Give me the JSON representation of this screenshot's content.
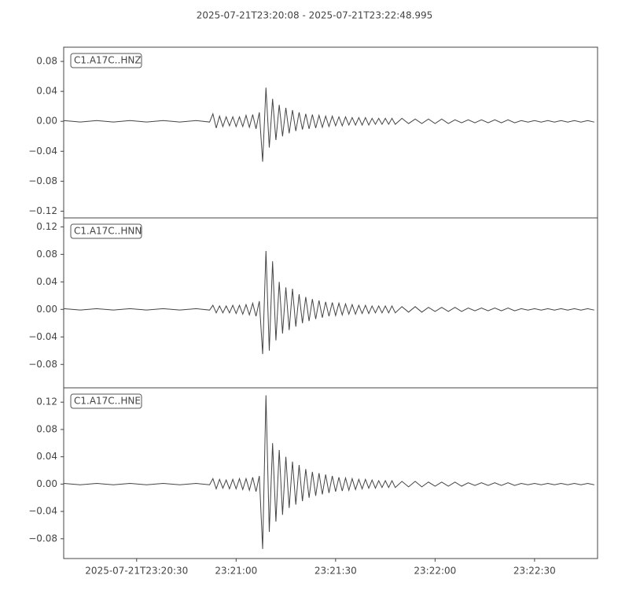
{
  "chart_data": {
    "type": "waveform",
    "title": "2025-07-21T23:20:08  -  2025-07-21T23:22:48.995",
    "xlim": [
      "2025-07-21T23:20:08",
      "2025-07-21T23:22:48.995"
    ],
    "xticks": [
      "2025-07-21T23:20:30",
      {
        "value": "2025-07-21T23:21:00",
        "label": "23:21:00"
      },
      {
        "value": "2025-07-21T23:21:30",
        "label": "23:21:30"
      },
      {
        "value": "2025-07-21T23:22:00",
        "label": "23:22:00"
      },
      {
        "value": "2025-07-21T23:22:30",
        "label": "23:22:30"
      }
    ],
    "x": [
      "2025-07-21T23:20:08",
      "2025-07-21T23:20:13",
      "2025-07-21T23:20:18",
      "2025-07-21T23:20:23",
      "2025-07-21T23:20:28",
      "2025-07-21T23:20:33",
      "2025-07-21T23:20:38",
      "2025-07-21T23:20:43",
      "2025-07-21T23:20:48",
      "2025-07-21T23:20:52",
      "2025-07-21T23:20:53",
      "2025-07-21T23:20:54",
      "2025-07-21T23:20:55",
      "2025-07-21T23:20:56",
      "2025-07-21T23:20:57",
      "2025-07-21T23:20:58",
      "2025-07-21T23:20:59",
      "2025-07-21T23:21:00",
      "2025-07-21T23:21:01",
      "2025-07-21T23:21:02",
      "2025-07-21T23:21:03",
      "2025-07-21T23:21:04",
      "2025-07-21T23:21:05",
      "2025-07-21T23:21:06",
      "2025-07-21T23:21:07",
      "2025-07-21T23:21:08",
      "2025-07-21T23:21:09",
      "2025-07-21T23:21:10",
      "2025-07-21T23:21:11",
      "2025-07-21T23:21:12",
      "2025-07-21T23:21:13",
      "2025-07-21T23:21:14",
      "2025-07-21T23:21:15",
      "2025-07-21T23:21:16",
      "2025-07-21T23:21:17",
      "2025-07-21T23:21:18",
      "2025-07-21T23:21:19",
      "2025-07-21T23:21:20",
      "2025-07-21T23:21:21",
      "2025-07-21T23:21:22",
      "2025-07-21T23:21:23",
      "2025-07-21T23:21:24",
      "2025-07-21T23:21:25",
      "2025-07-21T23:21:26",
      "2025-07-21T23:21:27",
      "2025-07-21T23:21:28",
      "2025-07-21T23:21:29",
      "2025-07-21T23:21:30",
      "2025-07-21T23:21:31",
      "2025-07-21T23:21:32",
      "2025-07-21T23:21:33",
      "2025-07-21T23:21:34",
      "2025-07-21T23:21:35",
      "2025-07-21T23:21:36",
      "2025-07-21T23:21:37",
      "2025-07-21T23:21:38",
      "2025-07-21T23:21:39",
      "2025-07-21T23:21:40",
      "2025-07-21T23:21:41",
      "2025-07-21T23:21:42",
      "2025-07-21T23:21:43",
      "2025-07-21T23:21:44",
      "2025-07-21T23:21:45",
      "2025-07-21T23:21:46",
      "2025-07-21T23:21:47",
      "2025-07-21T23:21:48",
      "2025-07-21T23:21:50",
      "2025-07-21T23:21:52",
      "2025-07-21T23:21:54",
      "2025-07-21T23:21:56",
      "2025-07-21T23:21:58",
      "2025-07-21T23:22:00",
      "2025-07-21T23:22:02",
      "2025-07-21T23:22:04",
      "2025-07-21T23:22:06",
      "2025-07-21T23:22:08",
      "2025-07-21T23:22:10",
      "2025-07-21T23:22:12",
      "2025-07-21T23:22:14",
      "2025-07-21T23:22:16",
      "2025-07-21T23:22:18",
      "2025-07-21T23:22:20",
      "2025-07-21T23:22:22",
      "2025-07-21T23:22:24",
      "2025-07-21T23:22:26",
      "2025-07-21T23:22:28",
      "2025-07-21T23:22:30",
      "2025-07-21T23:22:32",
      "2025-07-21T23:22:34",
      "2025-07-21T23:22:36",
      "2025-07-21T23:22:38",
      "2025-07-21T23:22:40",
      "2025-07-21T23:22:42",
      "2025-07-21T23:22:44",
      "2025-07-21T23:22:46",
      "2025-07-21T23:22:48"
    ],
    "series": [
      {
        "name": "C1.A17C..HNZ",
        "color": "#444444",
        "ylim": [
          -0.129,
          0.099
        ],
        "yticks": [
          {
            "value": -0.12,
            "label": "−0.12"
          },
          {
            "value": -0.08,
            "label": "−0.08"
          },
          {
            "value": -0.04,
            "label": "−0.04"
          },
          {
            "value": 0,
            "label": "0.00"
          },
          0.04,
          0.08
        ],
        "values": [
          0.001,
          -0.001,
          0.001,
          -0.001,
          0.001,
          -0.001,
          0.001,
          -0.001,
          0.001,
          -0.001,
          0.01,
          -0.009,
          0.007,
          -0.007,
          0.006,
          -0.006,
          0.006,
          -0.007,
          0.006,
          -0.007,
          0.008,
          -0.008,
          0.009,
          -0.01,
          0.012,
          -0.054,
          0.045,
          -0.035,
          0.03,
          -0.025,
          0.022,
          -0.02,
          0.018,
          -0.016,
          0.015,
          -0.013,
          0.012,
          -0.011,
          0.01,
          -0.01,
          0.009,
          -0.009,
          0.008,
          -0.008,
          0.007,
          -0.007,
          0.007,
          -0.006,
          0.006,
          -0.006,
          0.006,
          -0.005,
          0.005,
          -0.005,
          0.005,
          -0.005,
          0.005,
          -0.005,
          0.004,
          -0.004,
          0.004,
          -0.004,
          0.004,
          -0.004,
          0.004,
          -0.004,
          0.004,
          -0.003,
          0.003,
          -0.003,
          0.003,
          -0.003,
          0.003,
          -0.003,
          0.002,
          -0.002,
          0.002,
          -0.002,
          0.002,
          -0.002,
          0.002,
          -0.002,
          0.002,
          -0.002,
          0.001,
          -0.001,
          0.001,
          -0.001,
          0.001,
          -0.001,
          0.001,
          -0.001,
          0.001,
          -0.001,
          0.001,
          -0.001
        ]
      },
      {
        "name": "C1.A17C..HNN",
        "color": "#444444",
        "ylim": [
          -0.114,
          0.133
        ],
        "yticks": [
          {
            "value": -0.08,
            "label": "−0.08"
          },
          {
            "value": -0.04,
            "label": "−0.04"
          },
          {
            "value": 0,
            "label": "0.00"
          },
          0.04,
          0.08,
          0.12
        ],
        "values": [
          0.001,
          -0.001,
          0.001,
          -0.001,
          0.001,
          -0.001,
          0.001,
          -0.001,
          0.001,
          -0.001,
          0.006,
          -0.005,
          0.005,
          -0.005,
          0.005,
          -0.005,
          0.006,
          -0.006,
          0.006,
          -0.007,
          0.007,
          -0.008,
          0.009,
          -0.01,
          0.012,
          -0.065,
          0.085,
          -0.06,
          0.07,
          -0.045,
          0.04,
          -0.035,
          0.032,
          -0.03,
          0.03,
          -0.025,
          0.022,
          -0.02,
          0.018,
          -0.017,
          0.015,
          -0.014,
          0.013,
          -0.012,
          0.011,
          -0.01,
          0.01,
          -0.009,
          0.009,
          -0.008,
          0.008,
          -0.007,
          0.007,
          -0.007,
          0.006,
          -0.006,
          0.006,
          -0.006,
          0.005,
          -0.005,
          0.005,
          -0.005,
          0.005,
          -0.005,
          0.005,
          -0.005,
          0.004,
          -0.004,
          0.004,
          -0.004,
          0.003,
          -0.003,
          0.003,
          -0.003,
          0.003,
          -0.003,
          0.002,
          -0.002,
          0.002,
          -0.002,
          0.002,
          -0.002,
          0.002,
          -0.002,
          0.001,
          -0.001,
          0.001,
          -0.001,
          0.001,
          -0.001,
          0.001,
          -0.001,
          0.001,
          -0.001,
          0.001,
          -0.001
        ]
      },
      {
        "name": "C1.A17C..HNE",
        "color": "#444444",
        "ylim": [
          -0.109,
          0.141
        ],
        "yticks": [
          {
            "value": -0.08,
            "label": "−0.08"
          },
          {
            "value": -0.04,
            "label": "−0.04"
          },
          {
            "value": 0,
            "label": "0.00"
          },
          0.04,
          0.08,
          0.12
        ],
        "values": [
          0.001,
          -0.001,
          0.001,
          -0.001,
          0.001,
          -0.001,
          0.001,
          -0.001,
          0.001,
          -0.001,
          0.008,
          -0.007,
          0.007,
          -0.006,
          0.006,
          -0.007,
          0.007,
          -0.007,
          0.008,
          -0.008,
          0.008,
          -0.009,
          0.01,
          -0.011,
          0.012,
          -0.095,
          0.13,
          -0.07,
          0.06,
          -0.055,
          0.05,
          -0.045,
          0.04,
          -0.035,
          0.033,
          -0.03,
          0.028,
          -0.025,
          0.022,
          -0.02,
          0.018,
          -0.017,
          0.016,
          -0.015,
          0.014,
          -0.013,
          0.012,
          -0.011,
          0.01,
          -0.01,
          0.009,
          -0.009,
          0.008,
          -0.008,
          0.007,
          -0.007,
          0.007,
          -0.006,
          0.006,
          -0.006,
          0.005,
          -0.005,
          0.005,
          -0.005,
          0.005,
          -0.005,
          0.004,
          -0.004,
          0.004,
          -0.004,
          0.003,
          -0.003,
          0.003,
          -0.003,
          0.003,
          -0.003,
          0.002,
          -0.002,
          0.002,
          -0.002,
          0.002,
          -0.002,
          0.002,
          -0.002,
          0.001,
          -0.001,
          0.001,
          -0.001,
          0.001,
          -0.001,
          0.001,
          -0.001,
          0.001,
          -0.001,
          0.001,
          -0.001
        ]
      }
    ]
  }
}
